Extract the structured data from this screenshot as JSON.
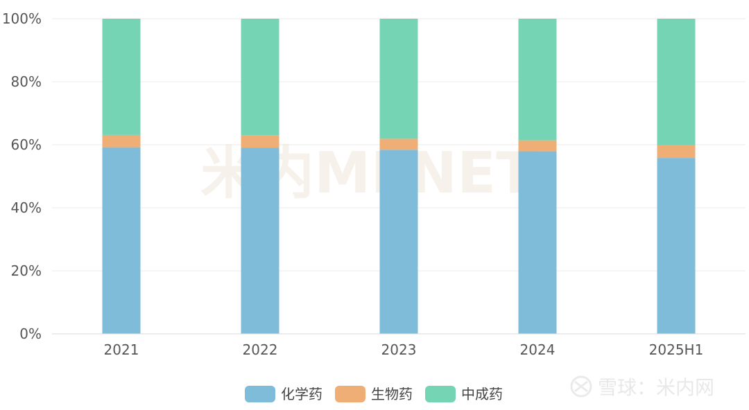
{
  "chart_data": {
    "type": "bar",
    "stacked": true,
    "categories": [
      "2021",
      "2022",
      "2023",
      "2024",
      "2025H1"
    ],
    "series": [
      {
        "name": "化学药",
        "color": "#7ebcda",
        "values": [
          59.2,
          59.1,
          58.4,
          57.9,
          55.8
        ]
      },
      {
        "name": "生物药",
        "color": "#efae76",
        "values": [
          3.9,
          3.9,
          3.5,
          3.5,
          4.0
        ]
      },
      {
        "name": "中成药",
        "color": "#75d4b4",
        "values": [
          36.9,
          37.0,
          38.1,
          38.6,
          40.2
        ]
      }
    ],
    "ylim": [
      0,
      100
    ],
    "yticks": [
      "0%",
      "20%",
      "40%",
      "60%",
      "80%",
      "100%"
    ],
    "grid": true,
    "legend": "bottom-center"
  },
  "watermark": {
    "center_text": "米内MENET",
    "corner_text": "雪球：米内网"
  }
}
